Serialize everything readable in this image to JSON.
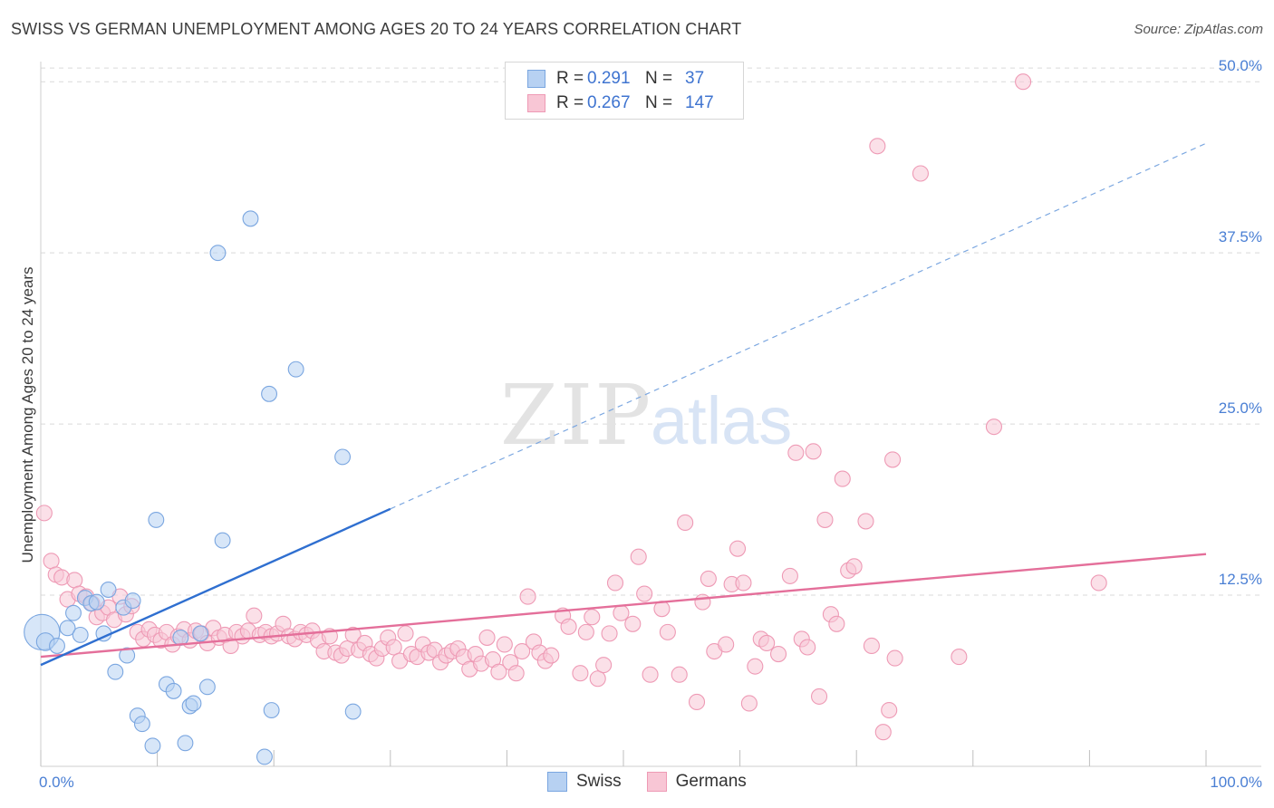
{
  "title": "SWISS VS GERMAN UNEMPLOYMENT AMONG AGES 20 TO 24 YEARS CORRELATION CHART",
  "source": "Source: ZipAtlas.com",
  "watermark": {
    "zip": "ZIP",
    "atlas": "atlas"
  },
  "legend": {
    "swiss": {
      "r_label": "R =",
      "r_value": "0.291",
      "n_label": "N =",
      "n_value": "37"
    },
    "germans": {
      "r_label": "R =",
      "r_value": "0.267",
      "n_label": "N =",
      "n_value": "147"
    }
  },
  "bottom_legend": {
    "swiss": "Swiss",
    "germans": "Germans"
  },
  "colors": {
    "swiss_fill": "#b7d1f2",
    "swiss_stroke": "#7aa6e0",
    "swiss_line": "#2f6fd0",
    "germans_fill": "#f8c6d5",
    "germans_stroke": "#ee9ab5",
    "germans_line": "#e46f9a",
    "grid": "#d9d9d9",
    "tick_text": "#4a7fd4"
  },
  "chart_data": {
    "type": "scatter",
    "title": "SWISS VS GERMAN UNEMPLOYMENT AMONG AGES 20 TO 24 YEARS CORRELATION CHART",
    "xlabel": "",
    "ylabel": "Unemployment Among Ages 20 to 24 years",
    "xlim": [
      0,
      100
    ],
    "ylim": [
      0,
      52
    ],
    "x_tick_labels": [
      "0.0%",
      "100.0%"
    ],
    "y_ticks": [
      12.5,
      25.0,
      37.5,
      50.0
    ],
    "y_tick_labels": [
      "12.5%",
      "25.0%",
      "37.5%",
      "50.0%"
    ],
    "grid": true,
    "legend_position": "top-center",
    "series": [
      {
        "name": "Swiss",
        "trend": {
          "x0": 0,
          "y0": 7.4,
          "x1": 30,
          "y1": 18.8,
          "dashed_to_x": 100,
          "dashed_to_y": 45.5
        },
        "points": [
          [
            0.1,
            9.8,
            28
          ],
          [
            0.4,
            9.1,
            14
          ],
          [
            1.4,
            8.8,
            12
          ],
          [
            2.3,
            10.1,
            12
          ],
          [
            2.8,
            11.2,
            12
          ],
          [
            3.4,
            9.6,
            12
          ],
          [
            3.8,
            12.3,
            12
          ],
          [
            4.3,
            11.9,
            12
          ],
          [
            4.8,
            12.0,
            12
          ],
          [
            5.4,
            9.7,
            12
          ],
          [
            5.8,
            12.9,
            12
          ],
          [
            6.4,
            6.9,
            12
          ],
          [
            7.1,
            11.6,
            12
          ],
          [
            7.4,
            8.1,
            12
          ],
          [
            7.9,
            12.1,
            12
          ],
          [
            8.3,
            3.7,
            12
          ],
          [
            8.7,
            3.1,
            12
          ],
          [
            9.6,
            1.5,
            12
          ],
          [
            9.9,
            18.0,
            12
          ],
          [
            10.8,
            6.0,
            12
          ],
          [
            11.4,
            5.5,
            12
          ],
          [
            12.0,
            9.4,
            12
          ],
          [
            12.4,
            1.7,
            12
          ],
          [
            12.8,
            4.4,
            12
          ],
          [
            13.1,
            4.6,
            12
          ],
          [
            13.7,
            9.7,
            12
          ],
          [
            14.3,
            5.8,
            12
          ],
          [
            15.2,
            37.5,
            12
          ],
          [
            15.6,
            16.5,
            12
          ],
          [
            18.0,
            40.0,
            12
          ],
          [
            19.2,
            0.7,
            12
          ],
          [
            19.6,
            27.2,
            12
          ],
          [
            19.8,
            4.1,
            12
          ],
          [
            21.9,
            29.0,
            12
          ],
          [
            25.9,
            22.6,
            12
          ],
          [
            26.8,
            4.0,
            12
          ]
        ]
      },
      {
        "name": "Germans",
        "trend": {
          "x0": 0,
          "y0": 8.0,
          "x1": 100,
          "y1": 15.5
        },
        "points": [
          [
            0.3,
            18.5
          ],
          [
            0.9,
            15.0
          ],
          [
            1.3,
            14.0
          ],
          [
            1.8,
            13.8
          ],
          [
            2.3,
            12.2
          ],
          [
            2.9,
            13.6
          ],
          [
            3.3,
            12.6
          ],
          [
            3.9,
            12.4
          ],
          [
            4.4,
            11.9
          ],
          [
            4.8,
            10.9
          ],
          [
            5.3,
            11.2
          ],
          [
            5.8,
            11.6
          ],
          [
            6.3,
            10.7
          ],
          [
            6.8,
            12.4
          ],
          [
            7.3,
            11.1
          ],
          [
            7.8,
            11.7
          ],
          [
            8.3,
            9.8
          ],
          [
            8.8,
            9.3
          ],
          [
            9.3,
            10.0
          ],
          [
            9.8,
            9.6
          ],
          [
            10.3,
            9.2
          ],
          [
            10.8,
            9.8
          ],
          [
            11.3,
            8.9
          ],
          [
            11.8,
            9.5
          ],
          [
            12.3,
            10.0
          ],
          [
            12.8,
            9.2
          ],
          [
            13.3,
            9.9
          ],
          [
            13.8,
            9.7
          ],
          [
            14.3,
            9.0
          ],
          [
            14.8,
            10.1
          ],
          [
            15.3,
            9.4
          ],
          [
            15.8,
            9.6
          ],
          [
            16.3,
            8.8
          ],
          [
            16.8,
            9.8
          ],
          [
            17.3,
            9.5
          ],
          [
            17.8,
            9.9
          ],
          [
            18.3,
            11.0
          ],
          [
            18.8,
            9.6
          ],
          [
            19.3,
            9.8
          ],
          [
            19.8,
            9.5
          ],
          [
            20.3,
            9.7
          ],
          [
            20.8,
            10.4
          ],
          [
            21.3,
            9.5
          ],
          [
            21.8,
            9.3
          ],
          [
            22.3,
            9.8
          ],
          [
            22.8,
            9.6
          ],
          [
            23.3,
            9.9
          ],
          [
            23.8,
            9.2
          ],
          [
            24.3,
            8.4
          ],
          [
            24.8,
            9.5
          ],
          [
            25.3,
            8.3
          ],
          [
            25.8,
            8.1
          ],
          [
            26.3,
            8.6
          ],
          [
            26.8,
            9.6
          ],
          [
            27.3,
            8.5
          ],
          [
            27.8,
            9.0
          ],
          [
            28.3,
            8.2
          ],
          [
            28.8,
            7.9
          ],
          [
            29.3,
            8.6
          ],
          [
            29.8,
            9.4
          ],
          [
            30.3,
            8.7
          ],
          [
            30.8,
            7.7
          ],
          [
            31.3,
            9.7
          ],
          [
            31.8,
            8.2
          ],
          [
            32.3,
            8.0
          ],
          [
            32.8,
            8.9
          ],
          [
            33.3,
            8.3
          ],
          [
            33.8,
            8.5
          ],
          [
            34.3,
            7.6
          ],
          [
            34.8,
            8.1
          ],
          [
            35.3,
            8.4
          ],
          [
            35.8,
            8.6
          ],
          [
            36.3,
            8.0
          ],
          [
            36.8,
            7.1
          ],
          [
            37.3,
            8.2
          ],
          [
            37.8,
            7.5
          ],
          [
            38.3,
            9.4
          ],
          [
            38.8,
            7.8
          ],
          [
            39.3,
            6.9
          ],
          [
            39.8,
            8.9
          ],
          [
            40.3,
            7.6
          ],
          [
            40.8,
            6.8
          ],
          [
            41.3,
            8.4
          ],
          [
            41.8,
            12.4
          ],
          [
            42.3,
            9.1
          ],
          [
            42.8,
            8.3
          ],
          [
            43.3,
            7.7
          ],
          [
            43.8,
            8.1
          ],
          [
            44.8,
            11.0
          ],
          [
            45.3,
            10.2
          ],
          [
            46.3,
            6.8
          ],
          [
            46.8,
            9.8
          ],
          [
            47.3,
            10.9
          ],
          [
            47.8,
            6.4
          ],
          [
            48.3,
            7.4
          ],
          [
            48.8,
            9.7
          ],
          [
            49.3,
            13.4
          ],
          [
            49.8,
            11.2
          ],
          [
            50.8,
            10.4
          ],
          [
            51.3,
            15.3
          ],
          [
            51.8,
            12.6
          ],
          [
            52.3,
            6.7
          ],
          [
            53.3,
            11.5
          ],
          [
            53.8,
            9.8
          ],
          [
            54.8,
            6.7
          ],
          [
            55.3,
            17.8
          ],
          [
            56.3,
            4.7
          ],
          [
            56.8,
            12.0
          ],
          [
            57.3,
            13.7
          ],
          [
            57.8,
            8.4
          ],
          [
            58.8,
            8.9
          ],
          [
            59.3,
            13.3
          ],
          [
            59.8,
            15.9
          ],
          [
            60.3,
            13.4
          ],
          [
            60.8,
            4.6
          ],
          [
            61.3,
            7.3
          ],
          [
            61.8,
            9.3
          ],
          [
            62.3,
            9.0
          ],
          [
            63.3,
            8.2
          ],
          [
            64.3,
            13.9
          ],
          [
            64.8,
            22.9
          ],
          [
            65.3,
            9.3
          ],
          [
            65.8,
            8.7
          ],
          [
            66.3,
            23.0
          ],
          [
            66.8,
            5.1
          ],
          [
            67.3,
            18.0
          ],
          [
            67.8,
            11.1
          ],
          [
            68.3,
            10.4
          ],
          [
            68.8,
            21.0
          ],
          [
            69.3,
            14.3
          ],
          [
            69.8,
            14.6
          ],
          [
            70.8,
            17.9
          ],
          [
            71.3,
            8.8
          ],
          [
            72.3,
            2.5
          ],
          [
            72.8,
            4.1
          ],
          [
            73.3,
            7.9
          ],
          [
            71.8,
            45.3
          ],
          [
            75.5,
            43.3
          ],
          [
            78.8,
            8.0
          ],
          [
            81.8,
            24.8
          ],
          [
            84.3,
            50.0
          ],
          [
            90.8,
            13.4
          ],
          [
            73.1,
            22.4
          ]
        ]
      }
    ]
  }
}
